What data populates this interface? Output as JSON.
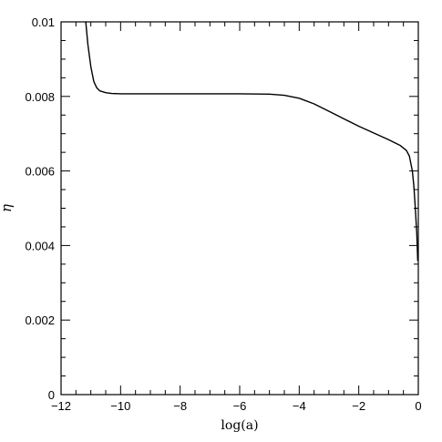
{
  "chart_data": {
    "type": "line",
    "title": "",
    "xlabel": "log(a)",
    "ylabel": "η",
    "xlim": [
      -12,
      0
    ],
    "ylim": [
      0,
      0.01
    ],
    "x_ticks_major": [
      -12,
      -10,
      -8,
      -6,
      -4,
      -2,
      0
    ],
    "x_tick_labels": [
      "−12",
      "−10",
      "−8",
      "−6",
      "−4",
      "−2",
      "0"
    ],
    "x_ticks_minor": [
      -11.5,
      -11,
      -10.5,
      -9.5,
      -9,
      -8.5,
      -7.5,
      -7,
      -6.5,
      -5.5,
      -5,
      -4.5,
      -3.5,
      -3,
      -2.5,
      -1.5,
      -1,
      -0.5
    ],
    "y_ticks_major": [
      0,
      0.002,
      0.004,
      0.006,
      0.008,
      0.01
    ],
    "y_tick_labels": [
      "0",
      "0.002",
      "0.004",
      "0.006",
      "0.008",
      "0.01"
    ],
    "y_ticks_minor": [
      0.0005,
      0.001,
      0.0015,
      0.0025,
      0.003,
      0.0035,
      0.0045,
      0.005,
      0.0055,
      0.0065,
      0.007,
      0.0075,
      0.0085,
      0.009,
      0.0095
    ],
    "grid": false,
    "series": [
      {
        "color": "#000000",
        "x": [
          -11.17,
          -11.1,
          -11.0,
          -10.9,
          -10.8,
          -10.7,
          -10.5,
          -10.3,
          -10.0,
          -9.5,
          -9.0,
          -8.0,
          -7.0,
          -6.0,
          -5.0,
          -4.5,
          -4.0,
          -3.5,
          -3.0,
          -2.5,
          -2.0,
          -1.5,
          -1.0,
          -0.6,
          -0.4,
          -0.3,
          -0.2,
          -0.15,
          -0.1,
          -0.05,
          -0.02
        ],
        "y": [
          0.01,
          0.0094,
          0.0088,
          0.0084,
          0.00823,
          0.00815,
          0.0081,
          0.00808,
          0.00807,
          0.00807,
          0.00807,
          0.00807,
          0.00807,
          0.00807,
          0.00806,
          0.00803,
          0.00795,
          0.0078,
          0.0076,
          0.0074,
          0.0072,
          0.00702,
          0.00684,
          0.00668,
          0.00655,
          0.0064,
          0.006,
          0.0056,
          0.005,
          0.0043,
          0.0036
        ]
      }
    ]
  }
}
